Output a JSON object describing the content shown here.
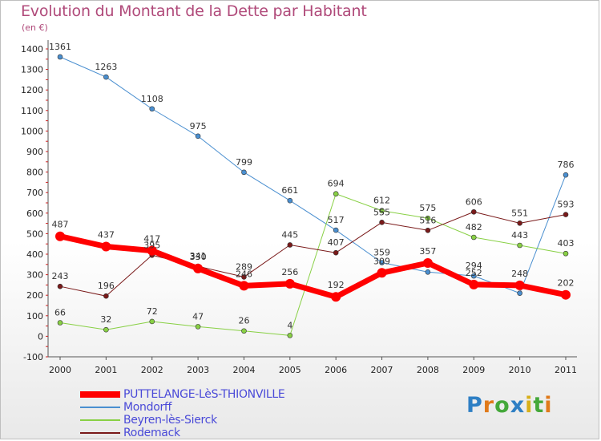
{
  "header": {
    "title": "Evolution du Montant de la Dette par Habitant",
    "subtitle": "(en €)"
  },
  "logo": {
    "letters": [
      "P",
      "r",
      "o",
      "x",
      "i",
      "t",
      "i"
    ]
  },
  "chart_data": {
    "type": "line",
    "x": [
      "2000",
      "2001",
      "2002",
      "2003",
      "2004",
      "2005",
      "2006",
      "2007",
      "2008",
      "2009",
      "2010",
      "2011"
    ],
    "yticks": [
      "-100",
      "0",
      "100",
      "200",
      "300",
      "400",
      "500",
      "600",
      "700",
      "800",
      "900",
      "1000",
      "1100",
      "1200",
      "1300",
      "1400"
    ],
    "ylim": [
      -100,
      1400
    ],
    "grid": false,
    "legend": "bottom",
    "series": [
      {
        "name": "PUTTELANGE-LèS-THIONVILLE",
        "color": "#ff0000",
        "width": 7,
        "marker": 6,
        "values": [
          487,
          437,
          417,
          330,
          246,
          256,
          192,
          309,
          357,
          252,
          248,
          202
        ],
        "labels": [
          "487",
          "437",
          "417",
          "330",
          "246",
          "256",
          "192",
          "309",
          "357",
          "252",
          "248",
          "202"
        ]
      },
      {
        "name": "Mondorff",
        "color": "#4a8fd0",
        "width": 1,
        "marker": 3,
        "values": [
          1361,
          1263,
          1108,
          975,
          799,
          661,
          517,
          359,
          313,
          294,
          210,
          786
        ],
        "labels": [
          "1361",
          "1263",
          "1108",
          "975",
          "799",
          "661",
          "517",
          "359",
          "",
          "294",
          "",
          "786"
        ]
      },
      {
        "name": "Beyren-lès-Sierck",
        "color": "#88d044",
        "width": 1,
        "marker": 3,
        "values": [
          66,
          32,
          72,
          47,
          26,
          4,
          694,
          612,
          575,
          482,
          443,
          403
        ],
        "labels": [
          "66",
          "32",
          "72",
          "47",
          "26",
          "4",
          "694",
          "612",
          "575",
          "482",
          "443",
          "403"
        ]
      },
      {
        "name": "Rodemack",
        "color": "#7a1a1a",
        "width": 1,
        "marker": 3,
        "values": [
          243,
          196,
          395,
          341,
          289,
          445,
          407,
          555,
          516,
          606,
          551,
          593
        ],
        "labels": [
          "243",
          "196",
          "395",
          "341",
          "289",
          "445",
          "407",
          "555",
          "516",
          "606",
          "551",
          "593"
        ]
      }
    ]
  }
}
